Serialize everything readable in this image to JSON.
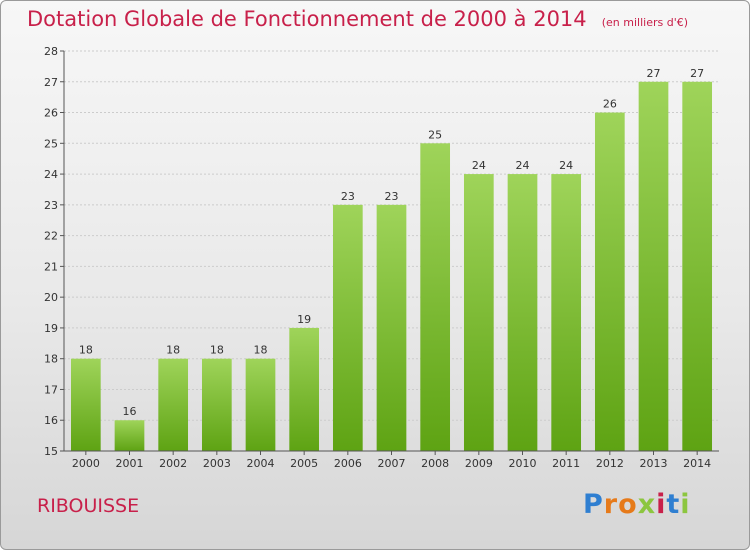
{
  "title": "Dotation Globale de Fonctionnement de 2000 à 2014",
  "unit_note": "(en milliers d'€)",
  "commune": "RIBOUISSE",
  "logo": {
    "letters": [
      "P",
      "r",
      "o",
      "x",
      "i",
      "t",
      "i"
    ],
    "colors": [
      "#2f7fd1",
      "#e67a1a",
      "#e67a1a",
      "#8cc63f",
      "#c8204a",
      "#2f7fd1",
      "#8cc63f"
    ]
  },
  "colors": {
    "bar_top": "#9fd45a",
    "bar_bottom": "#5ea313",
    "title": "#c8204a",
    "grid": "#cccccc"
  },
  "chart_data": {
    "type": "bar",
    "title": "Dotation Globale de Fonctionnement de 2000 à 2014",
    "categories": [
      "2000",
      "2001",
      "2002",
      "2003",
      "2004",
      "2005",
      "2006",
      "2007",
      "2008",
      "2009",
      "2010",
      "2011",
      "2012",
      "2013",
      "2014"
    ],
    "values": [
      18,
      16,
      18,
      18,
      18,
      19,
      23,
      23,
      25,
      24,
      24,
      24,
      26,
      27,
      27
    ],
    "ylim": [
      15,
      28
    ],
    "yticks": [
      15,
      16,
      17,
      18,
      19,
      20,
      21,
      22,
      23,
      24,
      25,
      26,
      27,
      28
    ],
    "grid": true,
    "legend": "none"
  }
}
